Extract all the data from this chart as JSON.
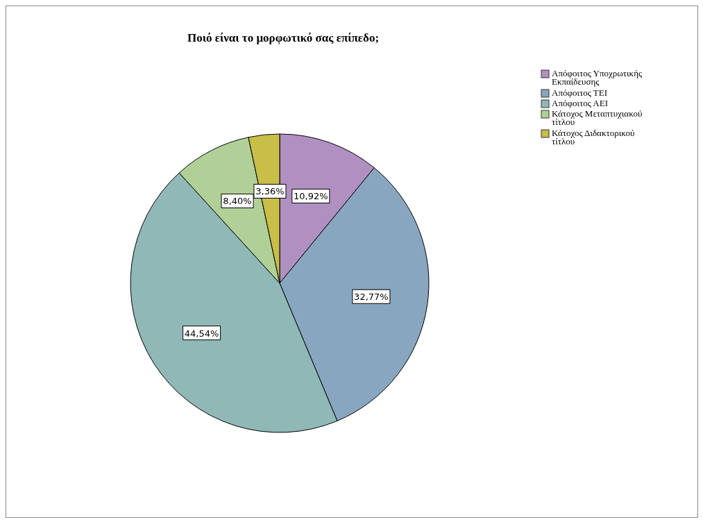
{
  "chart_data": {
    "type": "pie",
    "title": "Ποιό είναι το μορφωτικό σας επίπεδο;",
    "categories": [
      "Απόφοιτος Υποχρωτικής Εκπαίδευσης",
      "Απόφοιτος ΤΕΙ",
      "Απόφοιτος ΑΕΙ",
      "Κάτοχος Μεταπτυχιακού τίτλου",
      "Κάτοχος Διδακτορικού τίτλου"
    ],
    "values": [
      10.92,
      32.77,
      44.54,
      8.4,
      3.36
    ],
    "value_labels": [
      "10,92%",
      "32,77%",
      "44,54%",
      "8,40%",
      "3,36%"
    ],
    "colors": [
      "#b090c0",
      "#88a6c0",
      "#90b8b6",
      "#b0d098",
      "#c8be48"
    ],
    "legend": "top right"
  }
}
